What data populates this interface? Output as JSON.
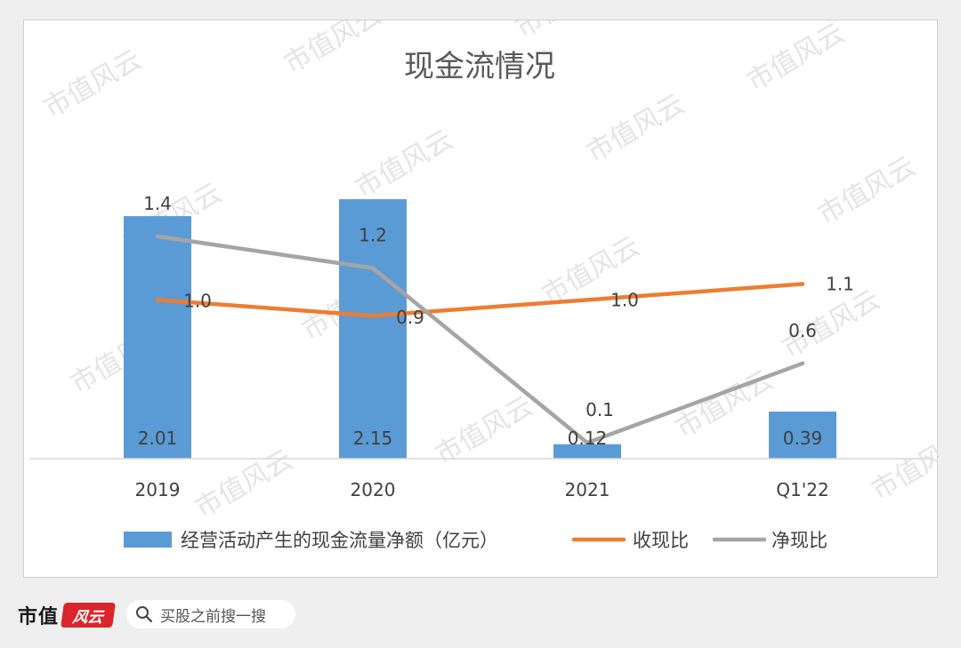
{
  "chart_data": {
    "type": "bar+line",
    "title": "现金流情况",
    "categories": [
      "2019",
      "2020",
      "2021",
      "Q1'22"
    ],
    "bar_series": {
      "name": "经营活动产生的现金流量净额（亿元）",
      "values": [
        2.01,
        2.15,
        0.12,
        0.39
      ],
      "labels": [
        "2.01",
        "2.15",
        "0.12",
        "0.39"
      ],
      "color": "#5b9bd5",
      "ylim": [
        0,
        2.6
      ]
    },
    "line_series": [
      {
        "name": "收现比",
        "values": [
          1.0,
          0.9,
          1.0,
          1.1
        ],
        "labels": [
          "1.0",
          "0.9",
          "1.0",
          "1.1"
        ],
        "color": "#ed7d31"
      },
      {
        "name": "净现比",
        "values": [
          1.4,
          1.2,
          0.1,
          0.6
        ],
        "labels": [
          "1.4",
          "1.2",
          "0.1",
          "0.6"
        ],
        "color": "#a5a5a5"
      }
    ],
    "line_ylim": [
      0,
      2.2
    ],
    "grid": false,
    "legend_position": "bottom"
  },
  "watermark_text": "市值风云",
  "footer": {
    "brand": "市值",
    "brand_seal": "风云",
    "search_text": "买股之前搜一搜",
    "search_icon": "search-icon"
  }
}
